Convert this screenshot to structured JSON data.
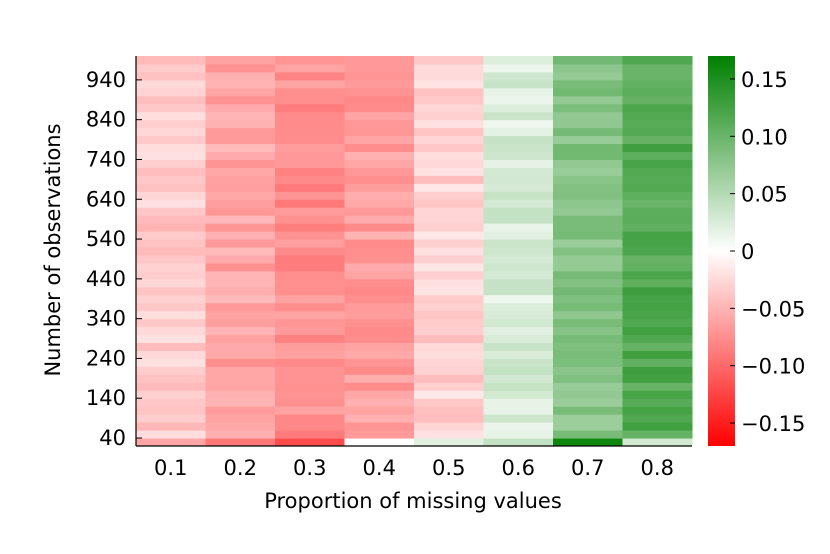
{
  "chart_data": {
    "type": "heatmap",
    "title": "",
    "xlabel": "Proportion of missing values",
    "ylabel": "Number of observations",
    "x": [
      "0.1",
      "0.2",
      "0.3",
      "0.4",
      "0.5",
      "0.6",
      "0.7",
      "0.8"
    ],
    "y_tick_labels": [
      "40",
      "140",
      "240",
      "340",
      "440",
      "540",
      "640",
      "740",
      "840",
      "940"
    ],
    "y_tick_values": [
      40,
      140,
      240,
      340,
      440,
      540,
      640,
      740,
      840,
      940
    ],
    "ylim": [
      20,
      1000
    ],
    "row_step": 20,
    "column_mean_values": [
      -0.035,
      -0.06,
      -0.075,
      -0.065,
      -0.03,
      0.025,
      0.08,
      0.115
    ],
    "first_row_values": [
      -0.06,
      -0.09,
      -0.12,
      0.0,
      0.02,
      0.04,
      0.16,
      0.03
    ],
    "colorbar": {
      "vmin": -0.17,
      "vmax": 0.17,
      "tick_values": [
        0.15,
        0.1,
        0.05,
        0,
        -0.05,
        -0.1,
        -0.15
      ],
      "tick_labels": [
        "0.15",
        "0.10",
        "0.05",
        "0",
        "−0.05",
        "−0.10",
        "−0.15"
      ],
      "low_color": "#ff0000",
      "mid_color": "#ffffff",
      "high_color": "#008000"
    },
    "grid": false,
    "legend": "colorbar-right"
  }
}
